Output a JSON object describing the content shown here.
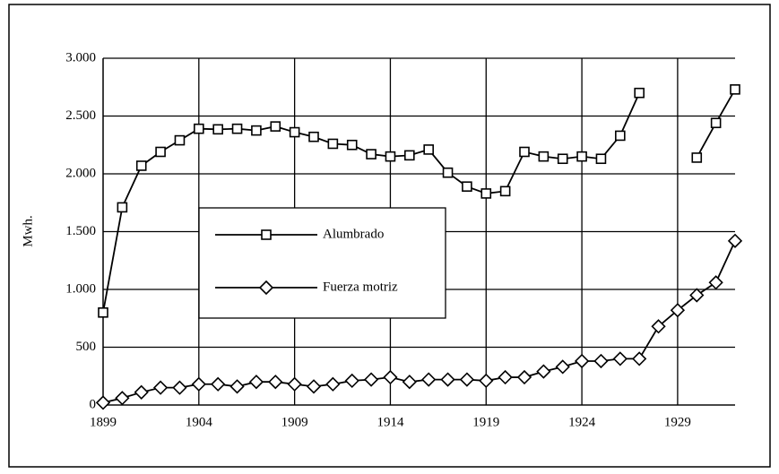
{
  "chart_data": {
    "type": "line",
    "ylabel": "Mwh.",
    "x": [
      1899,
      1900,
      1901,
      1902,
      1903,
      1904,
      1905,
      1906,
      1907,
      1908,
      1909,
      1910,
      1911,
      1912,
      1913,
      1914,
      1915,
      1916,
      1917,
      1918,
      1919,
      1920,
      1921,
      1922,
      1923,
      1924,
      1925,
      1926,
      1927,
      1928,
      1929,
      1930,
      1931,
      1932
    ],
    "series": [
      {
        "name": "Alumbrado",
        "color": "#000000",
        "marker": "square",
        "values": [
          800,
          1710,
          2070,
          2190,
          2290,
          2390,
          2385,
          2390,
          2375,
          2410,
          2360,
          2320,
          2260,
          2250,
          2170,
          2150,
          2160,
          2210,
          2010,
          1890,
          1830,
          1850,
          2190,
          2150,
          2130,
          2150,
          2130,
          2330,
          2700,
          null,
          null,
          2140,
          2440,
          2730
        ]
      },
      {
        "name": "Fuerza motriz",
        "color": "#000000",
        "marker": "diamond",
        "values": [
          20,
          60,
          110,
          150,
          150,
          180,
          180,
          160,
          200,
          200,
          180,
          160,
          180,
          210,
          220,
          240,
          200,
          220,
          220,
          220,
          210,
          240,
          240,
          290,
          330,
          380,
          380,
          400,
          400,
          680,
          820,
          950,
          1060,
          1420
        ]
      }
    ],
    "xlim": [
      1899,
      1932
    ],
    "xticks": [
      1899,
      1904,
      1909,
      1914,
      1919,
      1924,
      1929
    ],
    "ylim": [
      0,
      3000
    ],
    "yticks": [
      0,
      500,
      {
        "value": 1000,
        "label": "1.000"
      },
      {
        "value": 1500,
        "label": "1.500"
      },
      {
        "value": 2000,
        "label": "2.000"
      },
      {
        "value": 2500,
        "label": "2.500"
      },
      {
        "value": 3000,
        "label": "3.000"
      }
    ],
    "grid": true,
    "legend": "center-left"
  }
}
